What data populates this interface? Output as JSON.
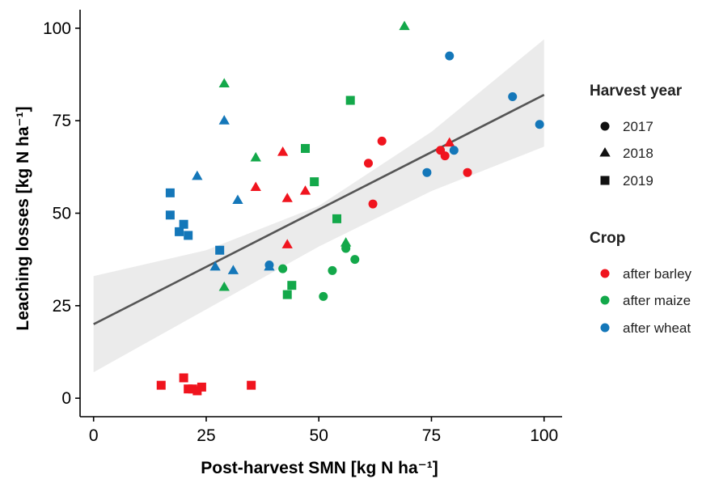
{
  "chart_data": {
    "type": "scatter",
    "xlabel": "Post-harvest SMN [kg N ha⁻¹]",
    "ylabel": "Leaching losses [kg N ha⁻¹]",
    "xlim": [
      -3,
      104
    ],
    "ylim": [
      -5,
      105
    ],
    "x_ticks": [
      0,
      25,
      50,
      75,
      100
    ],
    "y_ticks": [
      0,
      25,
      50,
      75,
      100
    ],
    "grid": false,
    "legend_position": "right",
    "regression": {
      "line": [
        [
          0,
          20
        ],
        [
          100,
          82
        ]
      ],
      "confidence_band": {
        "x": [
          0,
          25,
          50,
          75,
          100
        ],
        "upper": [
          33,
          40,
          52,
          72,
          97
        ],
        "lower": [
          7,
          24,
          41,
          56,
          68
        ]
      }
    },
    "legends": {
      "shape": {
        "title": "Harvest year",
        "items": [
          {
            "label": "2017",
            "marker": "circle"
          },
          {
            "label": "2018",
            "marker": "triangle"
          },
          {
            "label": "2019",
            "marker": "square"
          }
        ]
      },
      "color": {
        "title": "Crop",
        "items": [
          {
            "label": "after barley",
            "color": "#f0141e"
          },
          {
            "label": "after maize",
            "color": "#13a84a"
          },
          {
            "label": "after wheat",
            "color": "#1477b9"
          }
        ]
      }
    },
    "colors": {
      "barley": "#f0141e",
      "maize": "#13a84a",
      "wheat": "#1477b9",
      "band": "#ebebeb",
      "line": "#555555"
    },
    "series": [
      {
        "crop": "barley",
        "year": "2017",
        "points": [
          [
            61,
            63.5
          ],
          [
            64,
            69.5
          ],
          [
            62,
            52.5
          ],
          [
            77,
            67
          ],
          [
            78,
            65.5
          ],
          [
            83,
            61
          ]
        ]
      },
      {
        "crop": "barley",
        "year": "2018",
        "points": [
          [
            36,
            57
          ],
          [
            42,
            66.5
          ],
          [
            43,
            54
          ],
          [
            47,
            56
          ],
          [
            43,
            41.5
          ],
          [
            79,
            69
          ]
        ]
      },
      {
        "crop": "barley",
        "year": "2019",
        "points": [
          [
            15,
            3.5
          ],
          [
            20,
            5.5
          ],
          [
            21,
            2.5
          ],
          [
            22,
            2.5
          ],
          [
            23,
            2
          ],
          [
            24,
            3
          ],
          [
            35,
            3.5
          ]
        ]
      },
      {
        "crop": "maize",
        "year": "2017",
        "points": [
          [
            42,
            35
          ],
          [
            51,
            27.5
          ],
          [
            53,
            34.5
          ],
          [
            56,
            40.5
          ],
          [
            58,
            37.5
          ]
        ]
      },
      {
        "crop": "maize",
        "year": "2018",
        "points": [
          [
            29,
            85
          ],
          [
            36,
            65
          ],
          [
            29,
            30
          ],
          [
            56,
            42
          ],
          [
            69,
            100.5
          ]
        ]
      },
      {
        "crop": "maize",
        "year": "2019",
        "points": [
          [
            47,
            67.5
          ],
          [
            49,
            58.5
          ],
          [
            57,
            80.5
          ],
          [
            54,
            48.5
          ],
          [
            43,
            28
          ],
          [
            44,
            30.5
          ]
        ]
      },
      {
        "crop": "wheat",
        "year": "2017",
        "points": [
          [
            39,
            36
          ],
          [
            74,
            61
          ],
          [
            79,
            92.5
          ],
          [
            80,
            67
          ],
          [
            93,
            81.5
          ],
          [
            99,
            74
          ]
        ]
      },
      {
        "crop": "wheat",
        "year": "2018",
        "points": [
          [
            23,
            60
          ],
          [
            29,
            75
          ],
          [
            32,
            53.5
          ],
          [
            27,
            35.5
          ],
          [
            31,
            34.5
          ],
          [
            39,
            35.5
          ]
        ]
      },
      {
        "crop": "wheat",
        "year": "2019",
        "points": [
          [
            17,
            55.5
          ],
          [
            17,
            49.5
          ],
          [
            19,
            45
          ],
          [
            20,
            47
          ],
          [
            21,
            44
          ],
          [
            28,
            40
          ]
        ]
      }
    ]
  }
}
